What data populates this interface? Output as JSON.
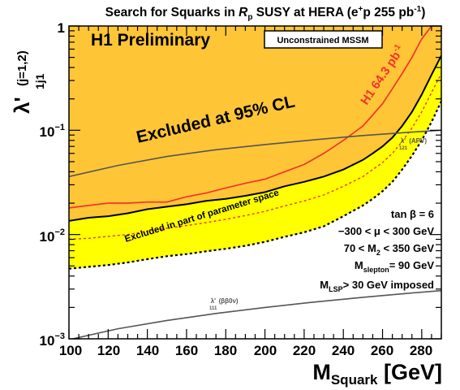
{
  "chart_data": {
    "type": "line",
    "title": "Search for Squarks in R_p SUSY at HERA (e+p 255 pb-1)",
    "title_parts": {
      "a": "Search for Squarks in ",
      "r": "R",
      "p": "p",
      "b": " SUSY at HERA (e",
      "sup_plus": "+",
      "c": "p 255 pb",
      "sup_m1": "-1",
      "d": ")"
    },
    "xlabel": {
      "main": "M",
      "sub": "Squark",
      "unit": " [GeV]"
    },
    "ylabel": {
      "main": "λ'",
      "sub": "1j1",
      "extra": "(j=1,2)"
    },
    "x_range": [
      100,
      290
    ],
    "y_range": [
      0.001,
      1
    ],
    "y_scale": "log",
    "x_ticks": [
      "100",
      "120",
      "140",
      "160",
      "180",
      "200",
      "220",
      "240",
      "260",
      "280"
    ],
    "x_tick_values": [
      100,
      120,
      140,
      160,
      180,
      200,
      220,
      240,
      260,
      280
    ],
    "y_ticks": [
      {
        "value": 1,
        "base": "1",
        "exp": ""
      },
      {
        "value": 0.1,
        "base": "10",
        "exp": "−1"
      },
      {
        "value": 0.01,
        "base": "10",
        "exp": "−2"
      },
      {
        "value": 0.001,
        "base": "10",
        "exp": "−3"
      }
    ],
    "colors": {
      "excluded": "#FEC536",
      "partial": "#FFFF00",
      "h1_line": "#F2342C",
      "gray": "#555555"
    },
    "labels": {
      "h1_prelim": "H1 Preliminary",
      "mssm_box": "Unconstrained MSSM",
      "excluded": "Excluded at 95% CL",
      "partial": "Excluded in part of parameter space",
      "h1_lumi": "H1 64.3 pb",
      "h1_lumi_sup": "-1",
      "apv": "λ'",
      "apv_sub": "121",
      "apv_tail": " (APV)",
      "bb": "λ'",
      "bb_sub": "111",
      "bb_tail": " (ββ0ν)"
    },
    "params": [
      {
        "main": "tan β = 6",
        "sub": "",
        "tail": ""
      },
      {
        "main": "−300 < μ  < 300 GeV",
        "sub": "",
        "tail": ""
      },
      {
        "main": "70 < M",
        "sub": "2",
        "tail": " < 350 GeV"
      },
      {
        "main": "M",
        "sub": "slepton",
        "tail": "= 90 GeV"
      },
      {
        "main": "M",
        "sub": "LSP",
        "tail": "> 30 GeV imposed"
      }
    ],
    "series": [
      {
        "key": "upper_boundary",
        "x": [
          100,
          110,
          120,
          130,
          140,
          150,
          160,
          170,
          180,
          190,
          200,
          210,
          220,
          230,
          240,
          250,
          255,
          260,
          265,
          270,
          275,
          280,
          285,
          290
        ],
        "y": [
          0.0135,
          0.0145,
          0.015,
          0.016,
          0.0175,
          0.0185,
          0.0195,
          0.021,
          0.022,
          0.0235,
          0.0255,
          0.029,
          0.032,
          0.036,
          0.042,
          0.052,
          0.06,
          0.07,
          0.085,
          0.11,
          0.15,
          0.22,
          0.34,
          0.52
        ]
      },
      {
        "key": "lower_boundary",
        "x": [
          100,
          110,
          120,
          130,
          140,
          150,
          160,
          170,
          180,
          190,
          200,
          210,
          220,
          230,
          240,
          250,
          255,
          260,
          265,
          270,
          275,
          280,
          285,
          290
        ],
        "y": [
          0.0047,
          0.0049,
          0.0051,
          0.0054,
          0.0058,
          0.0062,
          0.0065,
          0.0069,
          0.0073,
          0.0078,
          0.0085,
          0.0095,
          0.0105,
          0.012,
          0.015,
          0.019,
          0.022,
          0.026,
          0.032,
          0.042,
          0.057,
          0.08,
          0.12,
          0.19
        ]
      },
      {
        "key": "red_dashed",
        "x": [
          100,
          110,
          120,
          130,
          140,
          150,
          160,
          170,
          180,
          190,
          200,
          210,
          220,
          230,
          240,
          250,
          255,
          260,
          265,
          270,
          275,
          280,
          285,
          290
        ],
        "y": [
          0.009,
          0.0092,
          0.0096,
          0.01,
          0.0108,
          0.0115,
          0.0122,
          0.013,
          0.014,
          0.0152,
          0.0167,
          0.0188,
          0.021,
          0.024,
          0.029,
          0.036,
          0.042,
          0.049,
          0.06,
          0.078,
          0.105,
          0.15,
          0.23,
          0.35
        ]
      },
      {
        "key": "h1_64pb",
        "x": [
          100,
          110,
          120,
          130,
          140,
          150,
          160,
          170,
          180,
          190,
          200,
          210,
          220,
          230,
          240,
          250,
          255,
          260,
          265,
          270,
          275,
          280,
          285,
          290
        ],
        "y": [
          0.018,
          0.019,
          0.02,
          0.02,
          0.0205,
          0.0205,
          0.023,
          0.025,
          0.028,
          0.031,
          0.034,
          0.04,
          0.047,
          0.06,
          0.08,
          0.11,
          0.14,
          0.18,
          0.25,
          0.35,
          0.5,
          0.75,
          1.0,
          1.0
        ]
      },
      {
        "key": "apv",
        "x": [
          100,
          125,
          150,
          175,
          200,
          225,
          250,
          275,
          290
        ],
        "y": [
          0.036,
          0.046,
          0.056,
          0.065,
          0.073,
          0.081,
          0.089,
          0.096,
          0.1
        ]
      },
      {
        "key": "bb0nu",
        "x": [
          100,
          125,
          150,
          175,
          200,
          225,
          250,
          275,
          290
        ],
        "y": [
          0.00098,
          0.00125,
          0.0015,
          0.00175,
          0.002,
          0.00225,
          0.0025,
          0.00275,
          0.0029
        ]
      }
    ]
  }
}
